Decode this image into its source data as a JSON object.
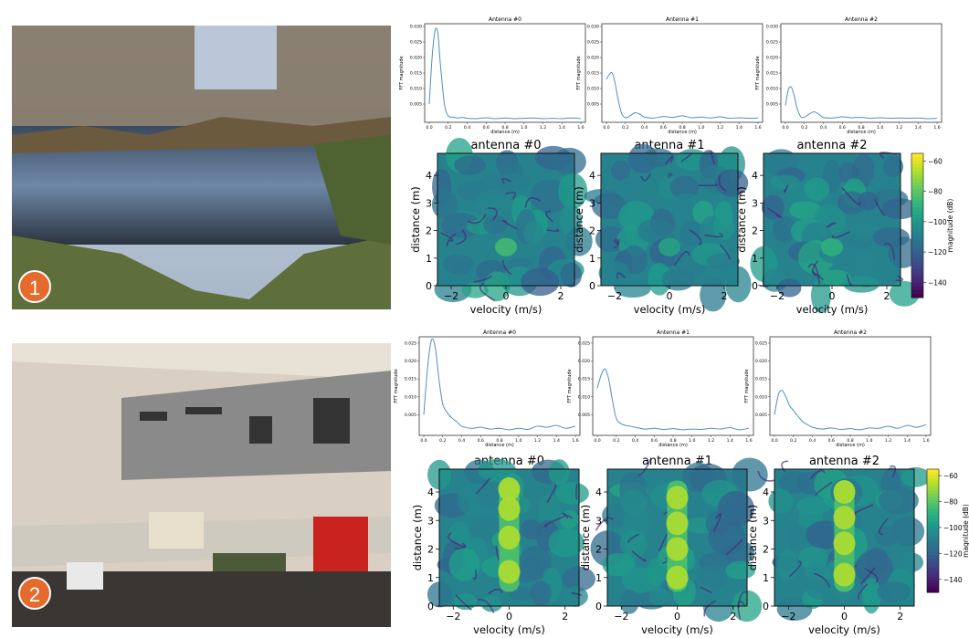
{
  "scenes": [
    {
      "badge": "1",
      "photo": "pond-scene"
    },
    {
      "badge": "2",
      "photo": "workshop-wall-scene"
    }
  ],
  "colors": {
    "badge": "#e56a2c",
    "fft_line": "#4f8fc0"
  },
  "chart_data": [
    {
      "type": "line",
      "scene": 1,
      "panels": [
        {
          "title": "Antenna #0",
          "xlabel": "distance (m)",
          "ylabel": "FFT magnitude",
          "xlim": [
            0,
            1.6
          ],
          "ylim": [
            0,
            0.03
          ],
          "xticks": [
            "0.0",
            "0.2",
            "0.4",
            "0.6",
            "0.8",
            "1.0",
            "1.2",
            "1.4",
            "1.6"
          ],
          "yticks": [
            "0.005",
            "0.010",
            "0.015",
            "0.020",
            "0.025",
            "0.030"
          ],
          "x": [
            0.0,
            0.03,
            0.06,
            0.09,
            0.12,
            0.16,
            0.2,
            0.25,
            0.3,
            0.35,
            0.4,
            0.5,
            0.6,
            0.7,
            0.8,
            0.9,
            1.0,
            1.1,
            1.2,
            1.3,
            1.4,
            1.5,
            1.6
          ],
          "y": [
            0.005,
            0.02,
            0.0285,
            0.028,
            0.017,
            0.005,
            0.0012,
            0.0008,
            0.0005,
            0.0007,
            0.0004,
            0.0003,
            0.0006,
            0.0003,
            0.0005,
            0.0003,
            0.0004,
            0.0005,
            0.0003,
            0.0004,
            0.0003,
            0.0005,
            0.0003
          ]
        },
        {
          "title": "Antenna #1",
          "xlabel": "distance (m)",
          "ylabel": "FFT magnitude",
          "xlim": [
            0,
            1.6
          ],
          "ylim": [
            0,
            0.03
          ],
          "xticks": [
            "0.0",
            "0.2",
            "0.4",
            "0.6",
            "0.8",
            "1.0",
            "1.2",
            "1.4",
            "1.6"
          ],
          "yticks": [
            "0.005",
            "0.010",
            "0.015",
            "0.020",
            "0.025",
            "0.030"
          ],
          "x": [
            0.0,
            0.03,
            0.06,
            0.09,
            0.12,
            0.16,
            0.2,
            0.25,
            0.3,
            0.35,
            0.4,
            0.5,
            0.6,
            0.7,
            0.8,
            0.9,
            1.0,
            1.1,
            1.2,
            1.3,
            1.4,
            1.5,
            1.6
          ],
          "y": [
            0.013,
            0.0145,
            0.015,
            0.012,
            0.007,
            0.002,
            0.0006,
            0.0012,
            0.0022,
            0.0018,
            0.0008,
            0.0005,
            0.001,
            0.0007,
            0.0012,
            0.0006,
            0.0008,
            0.0005,
            0.0009,
            0.0004,
            0.0006,
            0.0004,
            0.0005
          ]
        },
        {
          "title": "Antenna #2",
          "xlabel": "distance (m)",
          "ylabel": "FFT magnitude",
          "xlim": [
            0,
            1.6
          ],
          "ylim": [
            0,
            0.03
          ],
          "xticks": [
            "0.0",
            "0.2",
            "0.4",
            "0.6",
            "0.8",
            "1.0",
            "1.2",
            "1.4",
            "1.6"
          ],
          "yticks": [
            "0.005",
            "0.010",
            "0.015",
            "0.020",
            "0.025",
            "0.030"
          ],
          "x": [
            0.0,
            0.03,
            0.06,
            0.09,
            0.12,
            0.16,
            0.2,
            0.25,
            0.3,
            0.35,
            0.4,
            0.5,
            0.6,
            0.7,
            0.8,
            0.9,
            1.0,
            1.1,
            1.2,
            1.3,
            1.4,
            1.5,
            1.6
          ],
          "y": [
            0.0045,
            0.0095,
            0.0105,
            0.008,
            0.004,
            0.001,
            0.0008,
            0.0018,
            0.0025,
            0.0018,
            0.0007,
            0.0005,
            0.0009,
            0.0006,
            0.0007,
            0.0004,
            0.0006,
            0.0004,
            0.0005,
            0.0004,
            0.0005,
            0.0003,
            0.0004
          ]
        }
      ]
    },
    {
      "type": "heatmap",
      "scene": 1,
      "panels": [
        {
          "title": "antenna #0",
          "xlabel": "velocity (m/s)",
          "ylabel": "distance (m)",
          "xlim": [
            -2.5,
            2.5
          ],
          "ylim": [
            0,
            4.8
          ],
          "xticks": [
            -2,
            0,
            2
          ],
          "yticks": [
            0,
            1,
            2,
            3,
            4
          ],
          "target": {
            "velocity": 0,
            "distances": [],
            "strength": 0.2
          }
        },
        {
          "title": "antenna #1",
          "xlabel": "velocity (m/s)",
          "ylabel": "distance (m)",
          "xlim": [
            -2.5,
            2.5
          ],
          "ylim": [
            0,
            4.8
          ],
          "xticks": [
            -2,
            0,
            2
          ],
          "yticks": [
            0,
            1,
            2,
            3,
            4
          ],
          "target": {
            "velocity": 0,
            "distances": [],
            "strength": 0.1
          }
        },
        {
          "title": "antenna #2",
          "xlabel": "velocity (m/s)",
          "ylabel": "distance (m)",
          "xlim": [
            -2.5,
            2.5
          ],
          "ylim": [
            0,
            4.8
          ],
          "xticks": [
            -2,
            0,
            2
          ],
          "yticks": [
            0,
            1,
            2,
            3,
            4
          ],
          "target": {
            "velocity": 0,
            "distances": [],
            "strength": 0.15
          }
        }
      ],
      "colorbar": {
        "label": "magnitude (dB)",
        "range": [
          -150,
          -55
        ],
        "ticks": [
          "-60",
          "-80",
          "-100",
          "-120",
          "-140"
        ]
      }
    },
    {
      "type": "line",
      "scene": 2,
      "panels": [
        {
          "title": "Antenna #0",
          "xlabel": "distance (m)",
          "ylabel": "FFT magnitude",
          "xlim": [
            0,
            1.6
          ],
          "ylim": [
            0,
            0.026
          ],
          "xticks": [
            "0.0",
            "0.2",
            "0.4",
            "0.6",
            "0.8",
            "1.0",
            "1.2",
            "1.4",
            "1.6"
          ],
          "yticks": [
            "0.005",
            "0.010",
            "0.015",
            "0.020",
            "0.025"
          ],
          "x": [
            0.0,
            0.04,
            0.08,
            0.12,
            0.16,
            0.2,
            0.25,
            0.3,
            0.35,
            0.4,
            0.5,
            0.6,
            0.7,
            0.8,
            0.9,
            1.0,
            1.1,
            1.2,
            1.3,
            1.4,
            1.5,
            1.6
          ],
          "y": [
            0.005,
            0.018,
            0.0258,
            0.024,
            0.015,
            0.008,
            0.0055,
            0.004,
            0.003,
            0.0018,
            0.0012,
            0.0015,
            0.001,
            0.0012,
            0.0008,
            0.0012,
            0.0009,
            0.0018,
            0.0015,
            0.002,
            0.0012,
            0.0018
          ]
        },
        {
          "title": "Antenna #1",
          "xlabel": "distance (m)",
          "ylabel": "FFT magnitude",
          "xlim": [
            0,
            1.6
          ],
          "ylim": [
            0,
            0.026
          ],
          "xticks": [
            "0.0",
            "0.2",
            "0.4",
            "0.6",
            "0.8",
            "1.0",
            "1.2",
            "1.4",
            "1.6"
          ],
          "yticks": [
            "0.005",
            "0.010",
            "0.015",
            "0.020",
            "0.025"
          ],
          "x": [
            0.0,
            0.04,
            0.08,
            0.12,
            0.16,
            0.2,
            0.25,
            0.3,
            0.35,
            0.4,
            0.5,
            0.6,
            0.7,
            0.8,
            0.9,
            1.0,
            1.1,
            1.2,
            1.3,
            1.4,
            1.5,
            1.6
          ],
          "y": [
            0.0125,
            0.016,
            0.0178,
            0.015,
            0.009,
            0.004,
            0.0025,
            0.002,
            0.0018,
            0.0015,
            0.001,
            0.0012,
            0.0009,
            0.0011,
            0.0008,
            0.001,
            0.0009,
            0.0012,
            0.001,
            0.0014,
            0.0008,
            0.0012
          ]
        },
        {
          "title": "Antenna #2",
          "xlabel": "distance (m)",
          "ylabel": "FFT magnitude",
          "xlim": [
            0,
            1.6
          ],
          "ylim": [
            0,
            0.026
          ],
          "xticks": [
            "0.0",
            "0.2",
            "0.4",
            "0.6",
            "0.8",
            "1.0",
            "1.2",
            "1.4",
            "1.6"
          ],
          "yticks": [
            "0.005",
            "0.010",
            "0.015",
            "0.020",
            "0.025"
          ],
          "x": [
            0.0,
            0.04,
            0.08,
            0.12,
            0.16,
            0.2,
            0.25,
            0.3,
            0.35,
            0.4,
            0.5,
            0.6,
            0.7,
            0.8,
            0.9,
            1.0,
            1.1,
            1.2,
            1.3,
            1.4,
            1.5,
            1.6
          ],
          "y": [
            0.005,
            0.0105,
            0.0118,
            0.01,
            0.0075,
            0.0062,
            0.0045,
            0.003,
            0.0022,
            0.0015,
            0.001,
            0.0013,
            0.0009,
            0.0011,
            0.0008,
            0.0013,
            0.0012,
            0.0018,
            0.0012,
            0.002,
            0.0015,
            0.0022
          ]
        }
      ]
    },
    {
      "type": "heatmap",
      "scene": 2,
      "panels": [
        {
          "title": "antenna #0",
          "xlabel": "velocity (m/s)",
          "ylabel": "distance (m)",
          "xlim": [
            -2.5,
            2.5
          ],
          "ylim": [
            0,
            4.8
          ],
          "xticks": [
            -2,
            0,
            2
          ],
          "yticks": [
            0,
            1,
            2,
            3,
            4
          ],
          "target": {
            "velocity": 0,
            "distances": [
              1.2,
              2.4,
              3.4,
              4.1
            ],
            "strength": 0.9
          }
        },
        {
          "title": "antenna #1",
          "xlabel": "velocity (m/s)",
          "ylabel": "distance (m)",
          "xlim": [
            -2.5,
            2.5
          ],
          "ylim": [
            0,
            4.8
          ],
          "xticks": [
            -2,
            0,
            2
          ],
          "yticks": [
            0,
            1,
            2,
            3,
            4
          ],
          "target": {
            "velocity": 0,
            "distances": [
              1.0,
              2.0,
              2.9,
              3.8
            ],
            "strength": 0.85
          }
        },
        {
          "title": "antenna #2",
          "xlabel": "velocity (m/s)",
          "ylabel": "distance (m)",
          "xlim": [
            -2.5,
            2.5
          ],
          "ylim": [
            0,
            4.8
          ],
          "xticks": [
            -2,
            0,
            2
          ],
          "yticks": [
            0,
            1,
            2,
            3,
            4
          ],
          "target": {
            "velocity": 0,
            "distances": [
              1.1,
              2.2,
              3.1,
              4.0
            ],
            "strength": 0.8
          }
        }
      ],
      "colorbar": {
        "label": "magnitude (dB)",
        "range": [
          -150,
          -55
        ],
        "ticks": [
          "-60",
          "-80",
          "-100",
          "-120",
          "-140"
        ]
      }
    }
  ]
}
